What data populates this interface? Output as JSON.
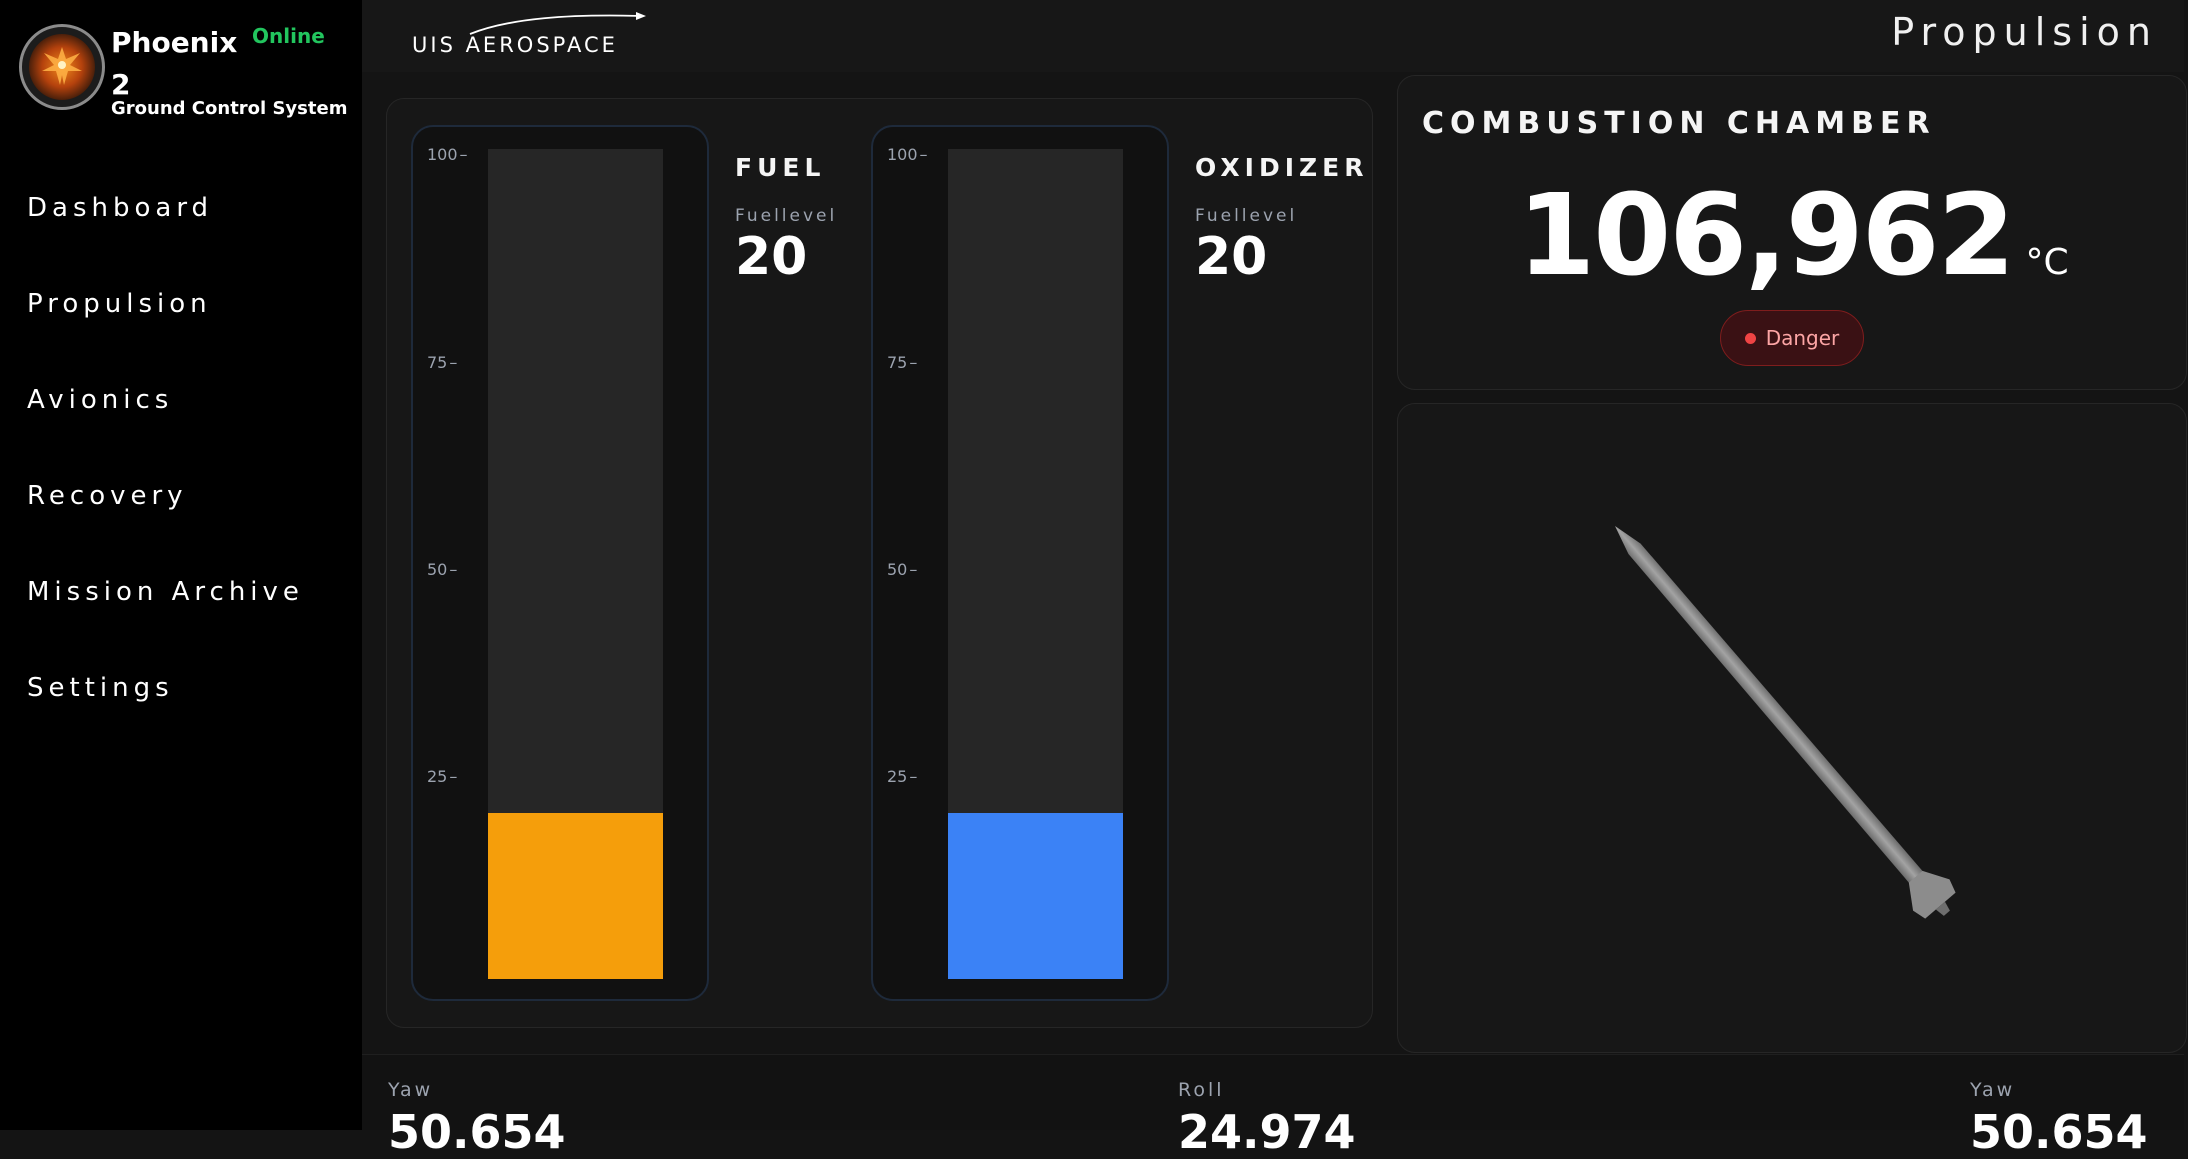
{
  "app": {
    "name": "Phoenix 2",
    "subtitle": "Ground Control System",
    "status": "Online"
  },
  "header": {
    "company": "UIS AEROSPACE",
    "page_title": "Propulsion"
  },
  "sidebar": {
    "items": [
      {
        "label": "Dashboard"
      },
      {
        "label": "Propulsion"
      },
      {
        "label": "Avionics"
      },
      {
        "label": "Recovery"
      },
      {
        "label": "Mission Archive"
      },
      {
        "label": "Settings"
      }
    ]
  },
  "tanks": {
    "ticks": [
      "100",
      "75",
      "50",
      "25"
    ],
    "fuel": {
      "title": "FUEL",
      "label": "Fuellevel",
      "value": "20",
      "level_percent": 20,
      "color": "#f59e0b"
    },
    "oxidizer": {
      "title": "OXIDIZER",
      "label": "Fuellevel",
      "value": "20",
      "level_percent": 20,
      "color": "#3b82f6"
    }
  },
  "combustion": {
    "title": "COMBUSTION CHAMBER",
    "value": "106,962",
    "unit": "°C",
    "status": "Danger"
  },
  "telemetry": [
    {
      "label": "Yaw",
      "value": "50.654"
    },
    {
      "label": "Roll",
      "value": "24.974"
    },
    {
      "label": "Yaw",
      "value": "50.654"
    }
  ],
  "colors": {
    "online": "#22c55e",
    "danger": "#ef4444",
    "background": "#141414",
    "sidebar": "#000000"
  }
}
